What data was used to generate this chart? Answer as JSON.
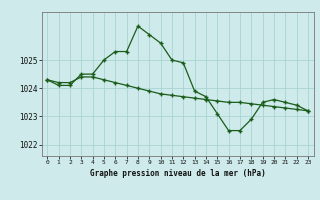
{
  "xlabel": "Graphe pression niveau de la mer (hPa)",
  "background_color": "#ceeaea",
  "grid_color": "#a8d4d4",
  "line_color": "#1a5c1a",
  "xlim": [
    -0.5,
    23.5
  ],
  "ylim": [
    1021.6,
    1026.7
  ],
  "yticks": [
    1022,
    1023,
    1024,
    1025
  ],
  "xticks": [
    0,
    1,
    2,
    3,
    4,
    5,
    6,
    7,
    8,
    9,
    10,
    11,
    12,
    13,
    14,
    15,
    16,
    17,
    18,
    19,
    20,
    21,
    22,
    23
  ],
  "line1_x": [
    0,
    1,
    2,
    3,
    4,
    5,
    6,
    7,
    8,
    9,
    10,
    11,
    12,
    13,
    14,
    15,
    16,
    17,
    18,
    19,
    20,
    21,
    22,
    23
  ],
  "line1_y": [
    1024.3,
    1024.1,
    1024.1,
    1024.5,
    1024.5,
    1025.0,
    1025.3,
    1025.3,
    1026.2,
    1025.9,
    1025.6,
    1025.0,
    1024.9,
    1023.9,
    1023.7,
    1023.1,
    1022.5,
    1022.5,
    1022.9,
    1023.5,
    1023.6,
    1023.5,
    1023.4,
    1023.2
  ],
  "line2_x": [
    0,
    1,
    2,
    3,
    4,
    5,
    6,
    7,
    8,
    9,
    10,
    11,
    12,
    13,
    14,
    15,
    16,
    17,
    18,
    19,
    20,
    21,
    22,
    23
  ],
  "line2_y": [
    1024.3,
    1024.2,
    1024.2,
    1024.4,
    1024.4,
    1024.3,
    1024.2,
    1024.1,
    1024.0,
    1023.9,
    1023.8,
    1023.75,
    1023.7,
    1023.65,
    1023.6,
    1023.55,
    1023.5,
    1023.5,
    1023.45,
    1023.4,
    1023.35,
    1023.3,
    1023.25,
    1023.2
  ]
}
